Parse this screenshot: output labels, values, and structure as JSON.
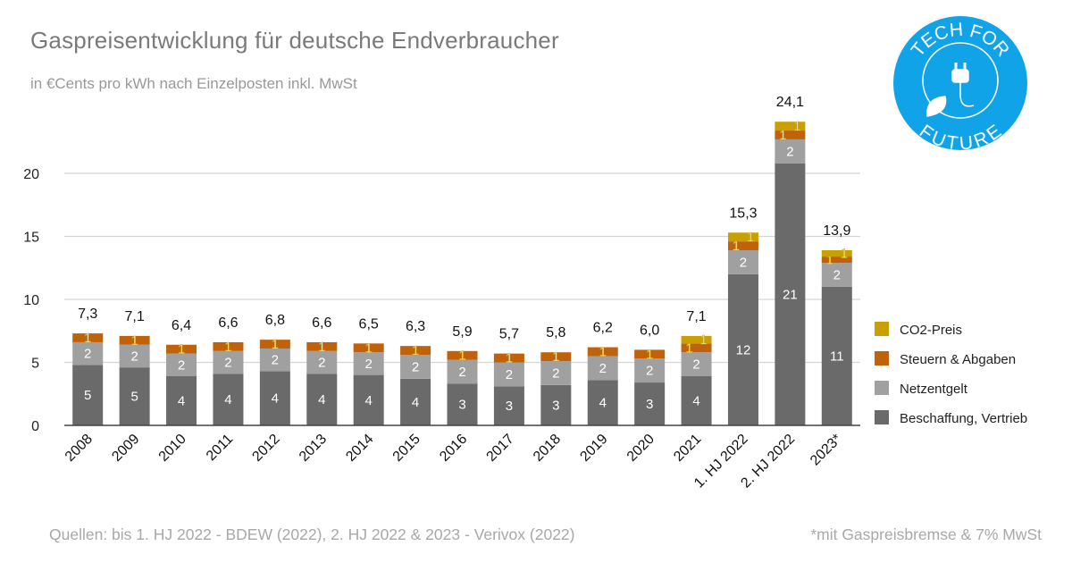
{
  "title": "Gaspreisentwicklung für deutsche Endverbraucher",
  "subtitle": "in €Cents pro kWh nach Einzelposten inkl. MwSt",
  "source": "Quellen: bis 1. HJ 2022 - BDEW (2022), 2. HJ 2022 & 2023 - Verivox (2022)",
  "footnote": "*mit Gaspreisbremse & 7% MwSt",
  "logo": {
    "text_top": "TECH FOR",
    "text_bottom": "FUTURE",
    "color": "#10a3e8",
    "icon": "plug-leaf-icon"
  },
  "chart_data": {
    "type": "stacked-bar",
    "categories": [
      "2008",
      "2009",
      "2010",
      "2011",
      "2012",
      "2013",
      "2014",
      "2015",
      "2016",
      "2017",
      "2018",
      "2019",
      "2020",
      "2021",
      "1. HJ 2022",
      "2. HJ 2022",
      "2023*"
    ],
    "series": [
      {
        "name": "Beschaffung, Vertrieb",
        "color": "#6a6a6a",
        "values": [
          4.8,
          4.6,
          3.9,
          4.1,
          4.3,
          4.1,
          4.0,
          3.7,
          3.3,
          3.1,
          3.2,
          3.6,
          3.4,
          3.9,
          12.0,
          20.8,
          11.0
        ]
      },
      {
        "name": "Netzentgelt",
        "color": "#a0a0a0",
        "values": [
          1.8,
          1.8,
          1.8,
          1.8,
          1.8,
          1.8,
          1.8,
          1.9,
          1.9,
          1.9,
          1.9,
          1.9,
          1.9,
          1.9,
          1.9,
          1.9,
          1.9
        ]
      },
      {
        "name": "Steuern & Abgaben",
        "color": "#c0620a",
        "values": [
          0.7,
          0.7,
          0.7,
          0.7,
          0.7,
          0.7,
          0.7,
          0.7,
          0.7,
          0.7,
          0.7,
          0.7,
          0.7,
          0.7,
          0.7,
          0.7,
          0.5
        ]
      },
      {
        "name": "CO2-Preis",
        "color": "#c9a000",
        "values": [
          0,
          0,
          0,
          0,
          0,
          0,
          0,
          0,
          0,
          0,
          0,
          0,
          0,
          0.6,
          0.7,
          0.7,
          0.5
        ]
      }
    ],
    "totals": [
      "7,3",
      "7,1",
      "6,4",
      "6,6",
      "6,8",
      "6,6",
      "6,5",
      "6,3",
      "5,9",
      "5,7",
      "5,8",
      "6,2",
      "6,0",
      "7,1",
      "15,3",
      "24,1",
      "13,9"
    ],
    "segment_labels": [
      [
        "5",
        "5",
        "4",
        "4",
        "4",
        "4",
        "4",
        "4",
        "3",
        "3",
        "3",
        "4",
        "3",
        "4",
        "12",
        "21",
        "11"
      ],
      [
        "2",
        "2",
        "2",
        "2",
        "2",
        "2",
        "2",
        "2",
        "2",
        "2",
        "2",
        "2",
        "2",
        "2",
        "2",
        "2",
        "2"
      ],
      [
        "1",
        "1",
        "1",
        "1",
        "1",
        "1",
        "1",
        "1",
        "1",
        "1",
        "1",
        "1",
        "1",
        "1",
        "1",
        "1",
        "1"
      ],
      [
        "",
        "",
        "",
        "",
        "",
        "",
        "",
        "",
        "",
        "",
        "",
        "",
        "",
        "1",
        "1",
        "1",
        "1"
      ]
    ],
    "yticks": [
      "0",
      "5",
      "10",
      "15",
      "20"
    ],
    "ylim": [
      0,
      25
    ],
    "grid": true,
    "legend_position": "right",
    "legend_order": [
      "CO2-Preis",
      "Steuern & Abgaben",
      "Netzentgelt",
      "Beschaffung, Vertrieb"
    ]
  }
}
